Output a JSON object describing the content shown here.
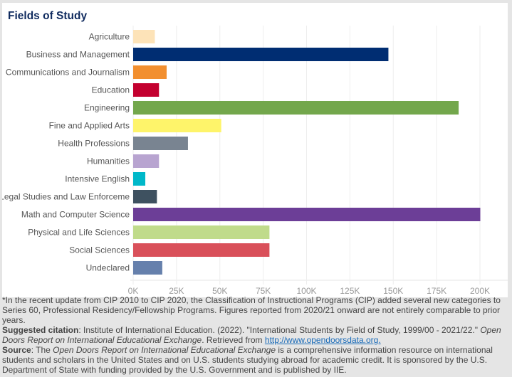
{
  "chart_data": {
    "type": "bar",
    "orientation": "horizontal",
    "title": "Fields of Study",
    "categories": [
      "Agriculture",
      "Business and Management",
      "Communications and Journalism",
      "Education",
      "Engineering",
      "Fine and Applied Arts",
      "Health Professions",
      "Humanities",
      "Intensive English",
      "Legal Studies and Law Enforcement",
      "Math and Computer Science",
      "Physical and Life Sciences",
      "Social Sciences",
      "Undeclared"
    ],
    "display_labels": [
      "Agriculture",
      "Business and Management",
      "Communications and Journalism",
      "Education",
      "Engineering",
      "Fine and Applied Arts",
      "Health Professions",
      "Humanities",
      "Intensive English",
      "Legal Studies and Law Enforceme",
      "Math and Computer Science",
      "Physical and Life Sciences",
      "Social Sciences",
      "Undeclared"
    ],
    "values": [
      12500,
      147200,
      19300,
      14900,
      187700,
      50800,
      31600,
      14900,
      7000,
      13700,
      200200,
      78600,
      78600,
      16800
    ],
    "colors": [
      "#fde3b8",
      "#002d72",
      "#f28f2f",
      "#c3002f",
      "#73a74c",
      "#fef46a",
      "#798491",
      "#b8a4d0",
      "#00b8c9",
      "#3e5160",
      "#6c3e97",
      "#c0db8b",
      "#d9505a",
      "#6680ac"
    ],
    "xlim": [
      0,
      205000
    ],
    "xticks": [
      0,
      25000,
      50000,
      75000,
      100000,
      125000,
      150000,
      175000,
      200000
    ],
    "xtick_labels": [
      "0K",
      "25K",
      "50K",
      "75K",
      "100K",
      "125K",
      "150K",
      "175K",
      "200K"
    ],
    "grid": true,
    "xlabel": "",
    "ylabel": ""
  },
  "footer": {
    "note": "*In the recent update from CIP 2010 to CIP 2020, the Classification of Instructional Programs (CIP) added several new categories to Series 60, Professional Residency/Fellowship Programs. Figures reported from 2020/21 onward are not entirely comparable to prior years.",
    "citation_label": "Suggested citation",
    "citation_text": ": Institute of International Education. (2022). \"International Students by Field of Study, 1999/00 - 2021/22.\" ",
    "citation_italic": "Open Doors Report on International Educational Exchange",
    "citation_retrieved": ". Retrieved from ",
    "citation_link": "http://www.opendoorsdata.org.",
    "source_label": "Source",
    "source_pre": ": The ",
    "source_italic": "Open Doors Report on International Educational Exchange",
    "source_text": " is a comprehensive information resource on international students and scholars in the United States and on U.S. students studying abroad for academic credit. It is sponsored by the U.S. Department of State with funding provided by the U.S. Government and is published by IIE."
  }
}
